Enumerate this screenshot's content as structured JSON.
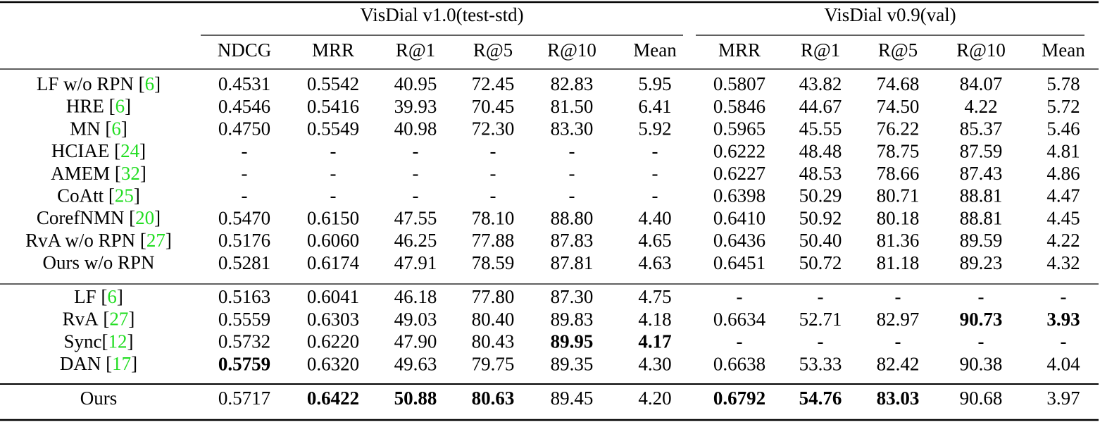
{
  "table": {
    "groups": [
      {
        "title": "VisDial v1.0(test-std)",
        "columns": [
          "NDCG",
          "MRR",
          "R@1",
          "R@5",
          "R@10",
          "Mean"
        ]
      },
      {
        "title": "VisDial v0.9(val)",
        "columns": [
          "MRR",
          "R@1",
          "R@5",
          "R@10",
          "Mean"
        ]
      }
    ],
    "sections": [
      [
        {
          "method": {
            "name": "LF w/o RPN",
            "cite": [
              "[",
              "6",
              "]"
            ]
          },
          "cells": [
            "0.4531",
            "0.5542",
            "40.95",
            "72.45",
            "82.83",
            "5.95",
            "0.5807",
            "43.82",
            "74.68",
            "84.07",
            "5.78"
          ]
        },
        {
          "method": {
            "name": "HRE",
            "cite": [
              "[",
              "6",
              "]"
            ]
          },
          "cells": [
            "0.4546",
            "0.5416",
            "39.93",
            "70.45",
            "81.50",
            "6.41",
            "0.5846",
            "44.67",
            "74.50",
            "4.22",
            "5.72"
          ]
        },
        {
          "method": {
            "name": "MN",
            "cite": [
              "[",
              "6",
              "]"
            ]
          },
          "cells": [
            "0.4750",
            "0.5549",
            "40.98",
            "72.30",
            "83.30",
            "5.92",
            "0.5965",
            "45.55",
            "76.22",
            "85.37",
            "5.46"
          ]
        },
        {
          "method": {
            "name": "HCIAE",
            "cite": [
              "[",
              "24",
              "]"
            ]
          },
          "cells": [
            "-",
            "-",
            "-",
            "-",
            "-",
            "-",
            "0.6222",
            "48.48",
            "78.75",
            "87.59",
            "4.81"
          ]
        },
        {
          "method": {
            "name": "AMEM",
            "cite": [
              "[",
              "32",
              "]"
            ]
          },
          "cells": [
            "-",
            "-",
            "-",
            "-",
            "-",
            "-",
            "0.6227",
            "48.53",
            "78.66",
            "87.43",
            "4.86"
          ]
        },
        {
          "method": {
            "name": "CoAtt",
            "cite": [
              "[",
              "25",
              "]"
            ]
          },
          "cells": [
            "-",
            "-",
            "-",
            "-",
            "-",
            "-",
            "0.6398",
            "50.29",
            "80.71",
            "88.81",
            "4.47"
          ]
        },
        {
          "method": {
            "name": "CorefNMN",
            "cite": [
              "[",
              "20",
              "]"
            ]
          },
          "cells": [
            "0.5470",
            "0.6150",
            "47.55",
            "78.10",
            "88.80",
            "4.40",
            "0.6410",
            "50.92",
            "80.18",
            "88.81",
            "4.45"
          ]
        },
        {
          "method": {
            "name": "RvA w/o RPN",
            "cite": [
              "[",
              "27",
              "]"
            ]
          },
          "cells": [
            "0.5176",
            "0.6060",
            "46.25",
            "77.88",
            "87.83",
            "4.65",
            "0.6436",
            "50.40",
            "81.36",
            "89.59",
            "4.22"
          ]
        },
        {
          "method": {
            "name": "Ours w/o RPN"
          },
          "cells": [
            "0.5281",
            "0.6174",
            "47.91",
            "78.59",
            "87.81",
            "4.63",
            "0.6451",
            "50.72",
            "81.18",
            "89.23",
            "4.32"
          ]
        }
      ],
      [
        {
          "method": {
            "name": "LF",
            "cite": [
              "[",
              "6",
              "]"
            ]
          },
          "cells": [
            "0.5163",
            "0.6041",
            "46.18",
            "77.80",
            "87.30",
            "4.75",
            "-",
            "-",
            "-",
            "-",
            "-"
          ]
        },
        {
          "method": {
            "name": "RvA",
            "cite": [
              "[",
              "27",
              "]"
            ]
          },
          "cells": [
            "0.5559",
            "0.6303",
            "49.03",
            "80.40",
            "89.83",
            "4.18",
            "0.6634",
            "52.71",
            "82.97",
            {
              "text": "90.73",
              "bold": true
            },
            {
              "text": "3.93",
              "bold": true
            }
          ]
        },
        {
          "method": {
            "name": "Sync",
            "cite": [
              "[",
              "12",
              "]"
            ]
          },
          "cells": [
            "0.5732",
            "0.6220",
            "47.90",
            "80.43",
            {
              "text": "89.95",
              "bold": true
            },
            {
              "text": "4.17",
              "bold": true
            },
            "-",
            "-",
            "-",
            "-",
            "-"
          ]
        },
        {
          "method": {
            "name": "DAN",
            "cite": [
              "[",
              "17",
              "]"
            ]
          },
          "cells": [
            {
              "text": "0.5759",
              "bold": true
            },
            "0.6320",
            "49.63",
            "79.75",
            "89.35",
            "4.30",
            "0.6638",
            "53.33",
            "82.42",
            "90.38",
            "4.04"
          ]
        }
      ],
      [
        {
          "method": {
            "name": "Ours"
          },
          "cells": [
            "0.5717",
            {
              "text": "0.6422",
              "bold": true
            },
            {
              "text": "50.88",
              "bold": true
            },
            {
              "text": "80.63",
              "bold": true
            },
            "89.45",
            "4.20",
            {
              "text": "0.6792",
              "bold": true
            },
            {
              "text": "54.76",
              "bold": true
            },
            {
              "text": "83.03",
              "bold": true
            },
            "90.68",
            "3.97"
          ]
        }
      ]
    ]
  }
}
